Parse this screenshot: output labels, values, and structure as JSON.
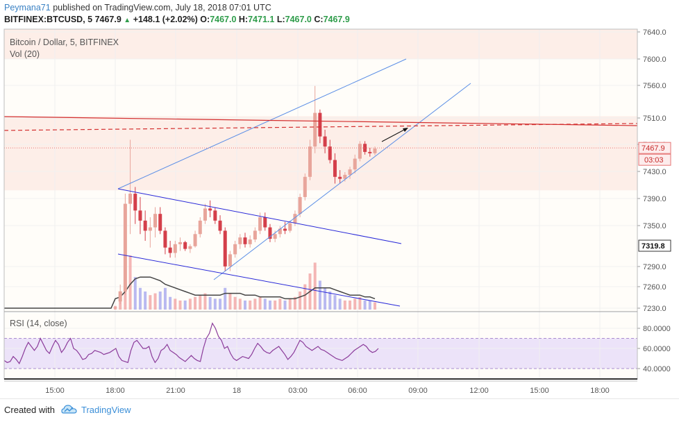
{
  "header": {
    "author": "Peymana71",
    "published_text": "published on TradingView.com, July 18, 2018 07:01 UTC",
    "symbol": "BITFINEX:BTCUSD, 5",
    "last": "7467.9",
    "change_arrow": "▲",
    "change": "+148.1 (+2.02%)",
    "o_label": "O:",
    "o_val": "7467.0",
    "h_label": "H:",
    "h_val": "7471.1",
    "l_label": "L:",
    "l_val": "7467.0",
    "c_label": "C:",
    "c_val": "7467.9"
  },
  "main_pane": {
    "title": "Bitcoin / Dollar, 5, BITFINEX",
    "volume_label": "Vol (20)"
  },
  "rsi_pane": {
    "title": "RSI (14, close)"
  },
  "footer": {
    "created_with": "Created with",
    "brand": "TradingView",
    "logo_icon": "tradingview-logo-icon"
  },
  "colors": {
    "up": "#e8a59b",
    "down": "#d43f4a",
    "volume_up": "#f1a4a4",
    "volume_down": "#a7a7ee",
    "trendline": "#5b8ee6",
    "channel": "#2727d8",
    "resistance": "#d32f2f",
    "rsi": "#8b3b9a",
    "rsi_band": "#ece3f9",
    "shade": "#fdeee8"
  },
  "chart_data": [
    {
      "type": "candlestick",
      "title": "Bitcoin / Dollar, 5, BITFINEX",
      "x_tick_labels": [
        "15:00",
        "18:00",
        "21:00",
        "18",
        "03:00",
        "06:00",
        "09:00",
        "12:00",
        "15:00",
        "18:00"
      ],
      "y_tick_labels": [
        "7640.0",
        "7600.0",
        "7560.0",
        "7510.0",
        "7470.0",
        "7430.0",
        "7390.0",
        "7350.0",
        "7290.0",
        "7260.0",
        "7230.0"
      ],
      "ylim": [
        7225,
        7645
      ],
      "last_price_label": "7467.9",
      "countdown_label": "03:03",
      "marked_price_label": "7319.8",
      "candles": [
        {
          "o": 7230,
          "h": 7232,
          "l": 7228,
          "c": 7231
        },
        {
          "o": 7240,
          "h": 7265,
          "l": 7236,
          "c": 7255
        },
        {
          "o": 7255,
          "h": 7400,
          "l": 7250,
          "c": 7385
        },
        {
          "o": 7385,
          "h": 7480,
          "l": 7340,
          "c": 7400
        },
        {
          "o": 7400,
          "h": 7410,
          "l": 7355,
          "c": 7375
        },
        {
          "o": 7375,
          "h": 7395,
          "l": 7340,
          "c": 7360
        },
        {
          "o": 7360,
          "h": 7375,
          "l": 7330,
          "c": 7345
        },
        {
          "o": 7345,
          "h": 7365,
          "l": 7320,
          "c": 7350
        },
        {
          "o": 7350,
          "h": 7380,
          "l": 7335,
          "c": 7370
        },
        {
          "o": 7370,
          "h": 7380,
          "l": 7340,
          "c": 7345
        },
        {
          "o": 7345,
          "h": 7350,
          "l": 7310,
          "c": 7320
        },
        {
          "o": 7320,
          "h": 7330,
          "l": 7305,
          "c": 7312
        },
        {
          "o": 7312,
          "h": 7330,
          "l": 7305,
          "c": 7325
        },
        {
          "o": 7325,
          "h": 7335,
          "l": 7315,
          "c": 7328
        },
        {
          "o": 7328,
          "h": 7330,
          "l": 7315,
          "c": 7318
        },
        {
          "o": 7318,
          "h": 7325,
          "l": 7312,
          "c": 7322
        },
        {
          "o": 7322,
          "h": 7345,
          "l": 7320,
          "c": 7340
        },
        {
          "o": 7340,
          "h": 7365,
          "l": 7335,
          "c": 7360
        },
        {
          "o": 7360,
          "h": 7385,
          "l": 7355,
          "c": 7378
        },
        {
          "o": 7378,
          "h": 7390,
          "l": 7365,
          "c": 7375
        },
        {
          "o": 7375,
          "h": 7380,
          "l": 7355,
          "c": 7360
        },
        {
          "o": 7360,
          "h": 7368,
          "l": 7340,
          "c": 7345
        },
        {
          "o": 7345,
          "h": 7350,
          "l": 7285,
          "c": 7292
        },
        {
          "o": 7292,
          "h": 7315,
          "l": 7285,
          "c": 7310
        },
        {
          "o": 7310,
          "h": 7330,
          "l": 7305,
          "c": 7325
        },
        {
          "o": 7325,
          "h": 7340,
          "l": 7318,
          "c": 7335
        },
        {
          "o": 7335,
          "h": 7342,
          "l": 7320,
          "c": 7325
        },
        {
          "o": 7325,
          "h": 7338,
          "l": 7320,
          "c": 7332
        },
        {
          "o": 7332,
          "h": 7350,
          "l": 7328,
          "c": 7345
        },
        {
          "o": 7345,
          "h": 7372,
          "l": 7340,
          "c": 7365
        },
        {
          "o": 7365,
          "h": 7372,
          "l": 7345,
          "c": 7350
        },
        {
          "o": 7350,
          "h": 7355,
          "l": 7328,
          "c": 7333
        },
        {
          "o": 7333,
          "h": 7345,
          "l": 7328,
          "c": 7340
        },
        {
          "o": 7340,
          "h": 7352,
          "l": 7335,
          "c": 7348
        },
        {
          "o": 7348,
          "h": 7358,
          "l": 7340,
          "c": 7345
        },
        {
          "o": 7345,
          "h": 7360,
          "l": 7342,
          "c": 7356
        },
        {
          "o": 7356,
          "h": 7375,
          "l": 7352,
          "c": 7370
        },
        {
          "o": 7370,
          "h": 7400,
          "l": 7365,
          "c": 7395
        },
        {
          "o": 7395,
          "h": 7430,
          "l": 7390,
          "c": 7425
        },
        {
          "o": 7425,
          "h": 7480,
          "l": 7420,
          "c": 7470
        },
        {
          "o": 7470,
          "h": 7560,
          "l": 7460,
          "c": 7520
        },
        {
          "o": 7520,
          "h": 7525,
          "l": 7475,
          "c": 7485
        },
        {
          "o": 7485,
          "h": 7495,
          "l": 7460,
          "c": 7470
        },
        {
          "o": 7470,
          "h": 7480,
          "l": 7445,
          "c": 7450
        },
        {
          "o": 7450,
          "h": 7460,
          "l": 7415,
          "c": 7425
        },
        {
          "o": 7425,
          "h": 7435,
          "l": 7415,
          "c": 7422
        },
        {
          "o": 7422,
          "h": 7432,
          "l": 7418,
          "c": 7428
        },
        {
          "o": 7428,
          "h": 7440,
          "l": 7422,
          "c": 7436
        },
        {
          "o": 7436,
          "h": 7458,
          "l": 7430,
          "c": 7452
        },
        {
          "o": 7452,
          "h": 7478,
          "l": 7448,
          "c": 7474
        },
        {
          "o": 7474,
          "h": 7478,
          "l": 7458,
          "c": 7462
        },
        {
          "o": 7462,
          "h": 7468,
          "l": 7455,
          "c": 7460
        },
        {
          "o": 7460,
          "h": 7470,
          "l": 7457,
          "c": 7467
        }
      ],
      "volume": [
        2,
        5,
        42,
        30,
        18,
        12,
        10,
        8,
        9,
        10,
        12,
        7,
        6,
        5,
        5,
        6,
        7,
        8,
        9,
        7,
        6,
        6,
        12,
        9,
        7,
        6,
        5,
        5,
        6,
        7,
        6,
        5,
        5,
        6,
        5,
        6,
        7,
        10,
        14,
        20,
        26,
        16,
        12,
        10,
        8,
        6,
        5,
        5,
        6,
        7,
        5,
        5,
        4
      ],
      "volume_ma": [
        6,
        7,
        10,
        14,
        17,
        18,
        18,
        18,
        17,
        16,
        14,
        13,
        12,
        11,
        10,
        9,
        8,
        8,
        8,
        8,
        8,
        8,
        9,
        9,
        9,
        9,
        8,
        8,
        8,
        7,
        7,
        7,
        7,
        7,
        6,
        6,
        6,
        7,
        8,
        10,
        12,
        12,
        12,
        12,
        11,
        10,
        9,
        8,
        8,
        8,
        7,
        7,
        6
      ],
      "resistance_level": 7496,
      "last_price": 7467.9
    },
    {
      "type": "line",
      "title": "RSI (14, close)",
      "y_tick_labels": [
        "80.0000",
        "60.0000",
        "40.0000"
      ],
      "ylim": [
        30,
        87
      ],
      "band": [
        40,
        70
      ],
      "values": [
        48,
        46,
        47,
        52,
        49,
        45,
        52,
        60,
        66,
        62,
        58,
        62,
        70,
        64,
        58,
        55,
        62,
        68,
        64,
        56,
        60,
        66,
        70,
        60,
        58,
        54,
        49,
        50,
        54,
        55,
        58,
        57,
        56,
        54,
        55,
        56,
        58,
        60,
        52,
        48,
        47,
        46,
        58,
        66,
        68,
        64,
        60,
        60,
        62,
        52,
        46,
        50,
        58,
        60,
        64,
        58,
        56,
        54,
        51,
        49,
        47,
        50,
        53,
        50,
        48,
        47,
        60,
        70,
        75,
        85,
        80,
        72,
        68,
        60,
        62,
        55,
        50,
        48,
        50,
        52,
        51,
        50,
        54,
        60,
        65,
        62,
        58,
        56,
        55,
        58,
        60,
        62,
        58,
        54,
        49,
        52,
        56,
        62,
        68,
        66,
        62,
        60,
        58,
        60,
        62,
        59,
        58,
        56,
        54,
        52,
        50,
        49,
        48,
        50,
        52,
        55,
        58,
        60,
        62,
        64,
        62,
        58,
        56,
        57,
        60
      ]
    }
  ]
}
